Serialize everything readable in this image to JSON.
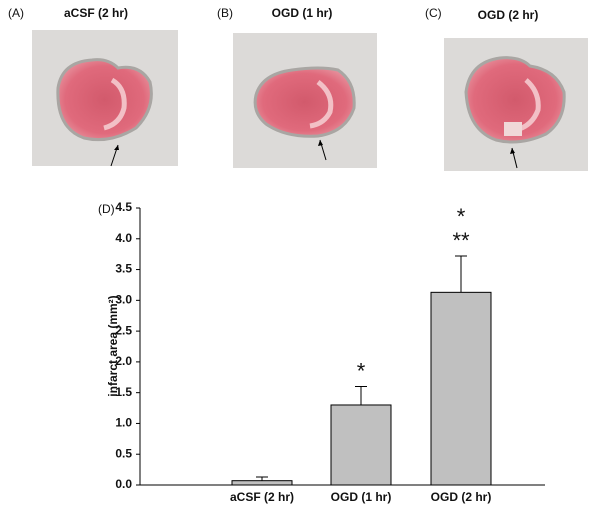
{
  "panels": [
    {
      "letter": "(A)",
      "title": "aCSF (2 hr)"
    },
    {
      "letter": "(B)",
      "title": "OGD (1 hr)"
    },
    {
      "letter": "(C)",
      "title": "OGD (2 hr)"
    }
  ],
  "chart_data": {
    "type": "bar",
    "panel_letter": "(D)",
    "ylabel": "infarct area (mm²)",
    "categories": [
      "aCSF (2 hr)",
      "OGD (1 hr)",
      "OGD (2 hr)"
    ],
    "values": [
      0.07,
      1.3,
      3.13
    ],
    "errors": [
      0.06,
      0.3,
      0.59
    ],
    "significance": [
      [],
      [
        "*"
      ],
      [
        "*",
        "**"
      ]
    ],
    "color": "#c0c0c0",
    "ylim": [
      0,
      4.5
    ],
    "yticks": [
      {
        "value": 0,
        "label": "0.0"
      },
      0.5,
      {
        "value": 1,
        "label": "1.0"
      },
      1.5,
      {
        "value": 2,
        "label": "2.0"
      },
      2.5,
      {
        "value": 3,
        "label": "3.0"
      },
      3.5,
      {
        "value": 4,
        "label": "4.0"
      },
      4.5
    ],
    "grid": false
  }
}
